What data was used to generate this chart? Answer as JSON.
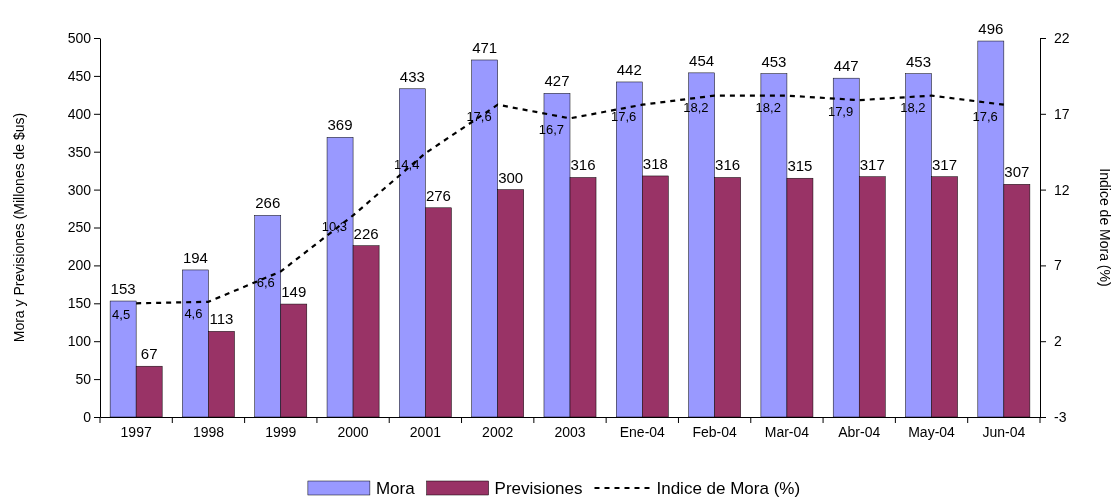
{
  "chart_data": {
    "type": "bar",
    "categories": [
      "1997",
      "1998",
      "1999",
      "2000",
      "2001",
      "2002",
      "2003",
      "Ene-04",
      "Feb-04",
      "Mar-04",
      "Abr-04",
      "May-04",
      "Jun-04"
    ],
    "ylabel": "Mora y Previsiones (Millones de $us)",
    "y2label": "Indice de Mora (%)",
    "ylim": [
      0,
      500
    ],
    "yticks": [
      0,
      50,
      100,
      150,
      200,
      250,
      300,
      350,
      400,
      450,
      500
    ],
    "y2lim": [
      -3,
      22
    ],
    "y2ticks": [
      -3,
      2,
      7,
      12,
      17,
      22
    ],
    "legend": "bottom",
    "grid": false,
    "series": [
      {
        "name": "Mora",
        "color": "#9999ff",
        "values": [
          153,
          194,
          266,
          369,
          433,
          471,
          427,
          442,
          454,
          453,
          447,
          453,
          496
        ],
        "value_labels": [
          "153",
          "194",
          "266",
          "369",
          "433",
          "471",
          "427",
          "442",
          "454",
          "453",
          "447",
          "453",
          "496"
        ]
      },
      {
        "name": "Previsiones",
        "color": "#993366",
        "values": [
          67,
          113,
          149,
          226,
          276,
          300,
          316,
          318,
          316,
          315,
          317,
          317,
          307
        ],
        "value_labels": [
          "67",
          "113",
          "149",
          "226",
          "276",
          "300",
          "316",
          "318",
          "316",
          "315",
          "317",
          "317",
          "307"
        ]
      },
      {
        "name": "Indice de Mora (%)",
        "type": "line",
        "axis": "y2",
        "color": "#000000",
        "line_style": "dashed",
        "marker": "none",
        "values": [
          4.5,
          4.6,
          6.6,
          10.3,
          14.4,
          17.6,
          16.7,
          17.6,
          18.2,
          18.2,
          17.9,
          18.2,
          17.6
        ],
        "value_labels": [
          "4,5",
          "4,6",
          "6,6",
          "10,3",
          "14,4",
          "17,6",
          "16,7",
          "17,6",
          "18,2",
          "18,2",
          "17,9",
          "18,2",
          "17,6"
        ]
      }
    ]
  }
}
